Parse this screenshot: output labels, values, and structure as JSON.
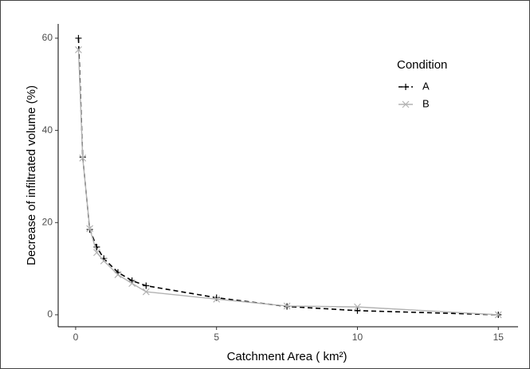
{
  "chart_data": {
    "type": "line",
    "x_label": "Catchment Area ( km²)",
    "y_label": "Decrease of infiltrated volume (%)",
    "legend_title": "Condition",
    "x": [
      0.1,
      0.25,
      0.5,
      0.75,
      1,
      1.5,
      2,
      2.5,
      5,
      7.5,
      10,
      15
    ],
    "series": [
      {
        "name": "A",
        "color": "#000000",
        "dash": true,
        "marker": "plus",
        "values": [
          60,
          34.2,
          18.5,
          14.7,
          12.2,
          9.2,
          7.4,
          6.3,
          3.7,
          1.8,
          0.9,
          0
        ]
      },
      {
        "name": "B",
        "color": "#b3b3b3",
        "dash": false,
        "marker": "cross",
        "values": [
          57.5,
          34,
          18.7,
          13.5,
          11.7,
          8.7,
          6.8,
          5.0,
          3.4,
          1.9,
          1.7,
          0
        ]
      }
    ],
    "xlim": [
      -0.62,
      15.7
    ],
    "ylim": [
      -2.6,
      63.1
    ],
    "xticks": [
      0,
      5,
      10,
      15
    ],
    "yticks": [
      0,
      20,
      40,
      60
    ],
    "grid": false,
    "legend": "top-right"
  }
}
